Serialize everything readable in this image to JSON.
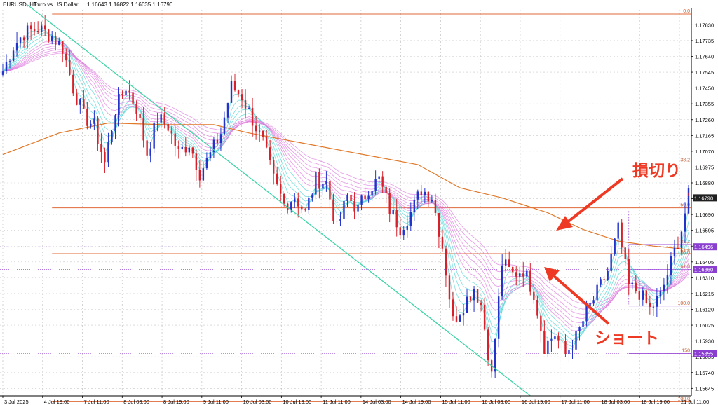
{
  "header": {
    "symbol": "EURUSD, H1:",
    "description": "Euro vs US Dollar",
    "ohlc": "1.16643 1.16822 1.16635 1.16790"
  },
  "colors": {
    "bull": "#2233cc",
    "bear": "#d8202a",
    "ma200": "#e07828",
    "ribbon_fast": "#4fd4d4",
    "ribbon_slow": "#dd77dd",
    "trendline": "#3ed4a8",
    "fibo": "#e06a3a",
    "hline_purple": "#9b4dd6",
    "badge_purple": "#8a3fd1",
    "badge_dark": "#202020",
    "grid": "#c8c8c8",
    "annotation": "#ee3a24"
  },
  "annotations": {
    "stop_loss": "損切り",
    "short": "ショート"
  },
  "chart_data": {
    "type": "candlestick",
    "title": "EURUSD, H1: Euro vs US Dollar",
    "ylim": [
      1.156,
      1.1792
    ],
    "x_tick_labels": [
      "3 Jul 2025",
      "4 Jul 19:00",
      "7 Jul 11:00",
      "8 Jul 03:00",
      "8 Jul 19:00",
      "9 Jul 11:00",
      "10 Jul 03:00",
      "10 Jul 19:00",
      "11 Jul 11:00",
      "14 Jul 03:00",
      "14 Jul 19:00",
      "15 Jul 11:00",
      "16 Jul 03:00",
      "16 Jul 19:00",
      "17 Jul 11:00",
      "18 Jul 03:00",
      "18 Jul 19:00",
      "21 Jul 11:00"
    ],
    "y_tick_labels": [
      "1.17830",
      "1.17735",
      "1.17640",
      "1.17545",
      "1.17450",
      "1.17355",
      "1.17260",
      "1.17165",
      "1.17070",
      "1.16975",
      "1.16880",
      "1.16785",
      "1.16690",
      "1.16595",
      "1.16500",
      "1.16405",
      "1.16310",
      "1.16215",
      "1.16120",
      "1.16025",
      "1.15930",
      "1.15835",
      "1.15740",
      "1.15645"
    ],
    "y_tick_values": [
      1.1783,
      1.17735,
      1.1764,
      1.17545,
      1.1745,
      1.17355,
      1.1726,
      1.17165,
      1.1707,
      1.16975,
      1.1688,
      1.16785,
      1.1669,
      1.16595,
      1.165,
      1.16405,
      1.1631,
      1.16215,
      1.1612,
      1.16025,
      1.1593,
      1.15835,
      1.1574,
      1.15645
    ],
    "close_path": [
      [
        0,
        1.1755
      ],
      [
        3,
        1.177
      ],
      [
        6,
        1.1778
      ],
      [
        10,
        1.1781
      ],
      [
        14,
        1.1776
      ],
      [
        17,
        1.1769
      ],
      [
        20,
        1.1745
      ],
      [
        23,
        1.1728
      ],
      [
        26,
        1.1722
      ],
      [
        29,
        1.17
      ],
      [
        32,
        1.1732
      ],
      [
        35,
        1.1746
      ],
      [
        38,
        1.1733
      ],
      [
        41,
        1.1706
      ],
      [
        44,
        1.1727
      ],
      [
        47,
        1.1722
      ],
      [
        50,
        1.1706
      ],
      [
        53,
        1.1712
      ],
      [
        56,
        1.1694
      ],
      [
        59,
        1.1705
      ],
      [
        62,
        1.1718
      ],
      [
        65,
        1.1746
      ],
      [
        68,
        1.174
      ],
      [
        71,
        1.1726
      ],
      [
        74,
        1.1712
      ],
      [
        77,
        1.169
      ],
      [
        80,
        1.1675
      ],
      [
        83,
        1.168
      ],
      [
        86,
        1.167
      ],
      [
        89,
        1.169
      ],
      [
        92,
        1.1688
      ],
      [
        95,
        1.166
      ],
      [
        98,
        1.168
      ],
      [
        101,
        1.1672
      ],
      [
        104,
        1.1685
      ],
      [
        107,
        1.169
      ],
      [
        110,
        1.1672
      ],
      [
        113,
        1.1661
      ],
      [
        116,
        1.167
      ],
      [
        119,
        1.1684
      ],
      [
        122,
        1.168
      ],
      [
        125,
        1.165
      ],
      [
        128,
        1.1605
      ],
      [
        131,
        1.1615
      ],
      [
        134,
        1.1625
      ],
      [
        136,
        1.1615
      ],
      [
        139,
        1.1572
      ],
      [
        142,
        1.164
      ],
      [
        145,
        1.1633
      ],
      [
        148,
        1.1636
      ],
      [
        151,
        1.1622
      ],
      [
        154,
        1.159
      ],
      [
        157,
        1.1597
      ],
      [
        160,
        1.1585
      ],
      [
        163,
        1.1595
      ],
      [
        166,
        1.161
      ],
      [
        169,
        1.1622
      ],
      [
        172,
        1.1635
      ],
      [
        175,
        1.166
      ],
      [
        178,
        1.1626
      ],
      [
        181,
        1.1622
      ],
      [
        184,
        1.1612
      ],
      [
        187,
        1.162
      ],
      [
        190,
        1.164
      ],
      [
        193,
        1.166
      ],
      [
        195,
        1.168
      ]
    ],
    "ma200": [
      [
        0,
        1.1705
      ],
      [
        16,
        1.1718
      ],
      [
        30,
        1.1724
      ],
      [
        46,
        1.1723
      ],
      [
        60,
        1.1723
      ],
      [
        70,
        1.1718
      ],
      [
        85,
        1.1712
      ],
      [
        100,
        1.1706
      ],
      [
        118,
        1.1699
      ],
      [
        130,
        1.1685
      ],
      [
        142,
        1.1679
      ],
      [
        155,
        1.167
      ],
      [
        165,
        1.166
      ],
      [
        175,
        1.1653
      ],
      [
        185,
        1.165
      ],
      [
        195,
        1.1648
      ]
    ],
    "ribbon_spread": [
      0.0,
      0.0003,
      0.0006,
      0.0009,
      0.0012,
      0.0015,
      0.0018,
      0.0022,
      0.0026
    ],
    "trendline": {
      "from": [
        7,
        1.1795
      ],
      "to": [
        150,
        1.156
      ]
    },
    "fibonacci_main": [
      {
        "label": "0.0",
        "value": 1.17895
      },
      {
        "label": "38.2",
        "value": 1.17
      },
      {
        "label": "50.0",
        "value": 1.1673
      },
      {
        "label": "61.8",
        "value": 1.16455
      },
      {
        "label": "100.0",
        "value": 1.15565
      }
    ],
    "fibonacci_right": [
      {
        "label": "38.2",
        "value": 1.1651
      },
      {
        "label": "50.0",
        "value": 1.1644
      },
      {
        "label": "61.8",
        "value": 1.1636
      },
      {
        "label": "100.0",
        "value": 1.1614
      },
      {
        "label": "150",
        "value": 1.15855
      }
    ],
    "horizontal_lines": [
      {
        "value": 1.1679,
        "label": "1.16790",
        "kind": "price"
      },
      {
        "value": 1.16496,
        "label": "1.16496",
        "kind": "level"
      },
      {
        "value": 1.1636,
        "label": "1.16360",
        "kind": "level"
      },
      {
        "value": 1.15855,
        "label": "1.15855",
        "kind": "level"
      }
    ],
    "ylabel": "",
    "xlabel": ""
  }
}
